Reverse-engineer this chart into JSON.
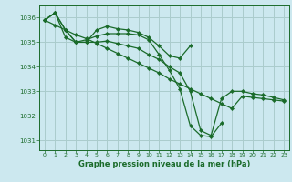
{
  "background_color": "#cce8ef",
  "grid_color": "#aacccc",
  "line_color": "#1a6b2a",
  "xlabel": "Graphe pression niveau de la mer (hPa)",
  "ylim": [
    1030.6,
    1036.5
  ],
  "yticks": [
    1031,
    1032,
    1033,
    1034,
    1035,
    1036
  ],
  "xlim": [
    -0.5,
    23.5
  ],
  "xticks": [
    0,
    1,
    2,
    3,
    4,
    5,
    6,
    7,
    8,
    9,
    10,
    11,
    12,
    13,
    14,
    15,
    16,
    17,
    18,
    19,
    20,
    21,
    22,
    23
  ],
  "series": [
    [
      1035.9,
      1036.2,
      1035.2,
      1035.0,
      1035.0,
      1035.5,
      1035.65,
      1035.55,
      1035.5,
      1035.4,
      1035.2,
      1034.85,
      1034.45,
      1034.35,
      1034.85,
      null,
      null,
      null,
      null,
      null,
      null,
      null,
      null,
      null
    ],
    [
      1035.9,
      1036.2,
      1035.5,
      1035.0,
      1035.0,
      1035.0,
      1035.05,
      1034.95,
      1034.85,
      1034.75,
      1034.5,
      1034.3,
      1034.0,
      1033.75,
      1033.0,
      1031.4,
      1031.2,
      1032.7,
      1033.0,
      1033.0,
      1032.9,
      1032.85,
      1032.75,
      1032.65
    ],
    [
      1035.9,
      1036.2,
      1035.5,
      1035.0,
      1035.1,
      1035.25,
      1035.35,
      1035.35,
      1035.35,
      1035.3,
      1035.1,
      1034.5,
      1033.85,
      1033.1,
      1031.6,
      1031.2,
      1031.15,
      1031.7,
      null,
      null,
      null,
      null,
      null,
      null
    ],
    [
      1035.9,
      1035.7,
      1035.5,
      1035.3,
      1035.15,
      1034.95,
      1034.75,
      1034.55,
      1034.35,
      1034.15,
      1033.95,
      1033.75,
      1033.5,
      1033.3,
      1033.1,
      1032.9,
      1032.7,
      1032.5,
      1032.3,
      1032.8,
      1032.75,
      1032.7,
      1032.65,
      1032.6
    ]
  ]
}
